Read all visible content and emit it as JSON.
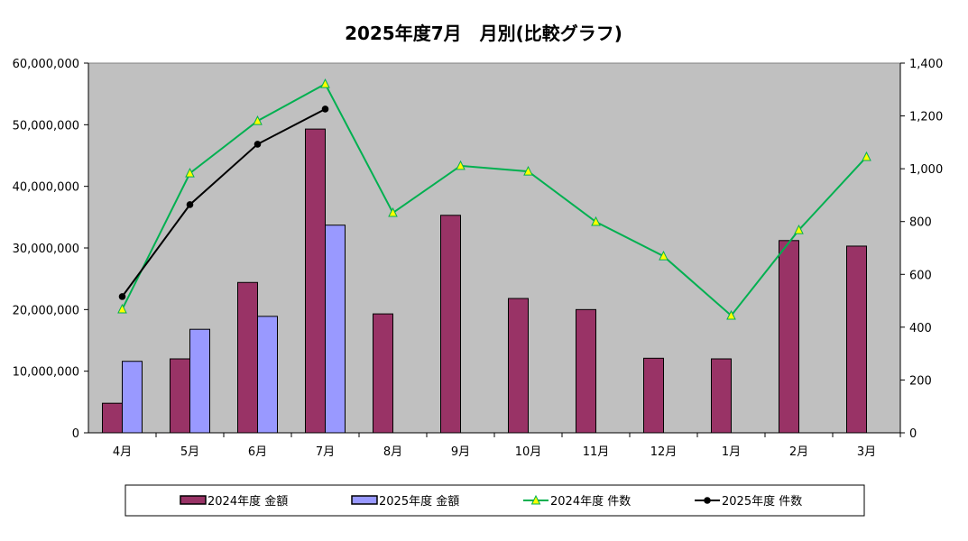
{
  "chart_data": {
    "type": "bar+line",
    "title": "2025年度7月　月別(比較グラフ)",
    "categories": [
      "4月",
      "5月",
      "6月",
      "7月",
      "8月",
      "9月",
      "10月",
      "11月",
      "12月",
      "1月",
      "2月",
      "3月"
    ],
    "y_left": {
      "range": [
        0,
        60000000
      ],
      "ticks": [
        "0",
        "10,000,000",
        "20,000,000",
        "30,000,000",
        "40,000,000",
        "50,000,000",
        "60,000,000"
      ]
    },
    "y_right": {
      "range": [
        0,
        1400
      ],
      "ticks": [
        "0",
        "200",
        "400",
        "600",
        "800",
        "1,000",
        "1,200",
        "1,400"
      ]
    },
    "grid": false,
    "legend_position": "bottom",
    "series": [
      {
        "name": "2024年度 金額",
        "kind": "bar",
        "axis": "left",
        "color": "#993366",
        "values": [
          4800000,
          12000000,
          24400000,
          49300000,
          19300000,
          35300000,
          21800000,
          20000000,
          12100000,
          12000000,
          31200000,
          30300000
        ]
      },
      {
        "name": "2025年度 金額",
        "kind": "bar",
        "axis": "left",
        "color": "#9999FF",
        "values": [
          11600000,
          16800000,
          18900000,
          33700000,
          null,
          null,
          null,
          null,
          null,
          null,
          null,
          null
        ]
      },
      {
        "name": "2024年度 件数",
        "kind": "line",
        "axis": "right",
        "color": "#00B050",
        "marker": "triangle",
        "marker_color": "#FFFF00",
        "values": [
          468,
          983,
          1181,
          1321,
          833,
          1011,
          990,
          799,
          669,
          444,
          768,
          1045
        ]
      },
      {
        "name": "2025年度 件数",
        "kind": "line",
        "axis": "right",
        "color": "#000000",
        "marker": "circle",
        "values": [
          516,
          864,
          1093,
          1226,
          null,
          null,
          null,
          null,
          null,
          null,
          null,
          null
        ]
      }
    ]
  }
}
